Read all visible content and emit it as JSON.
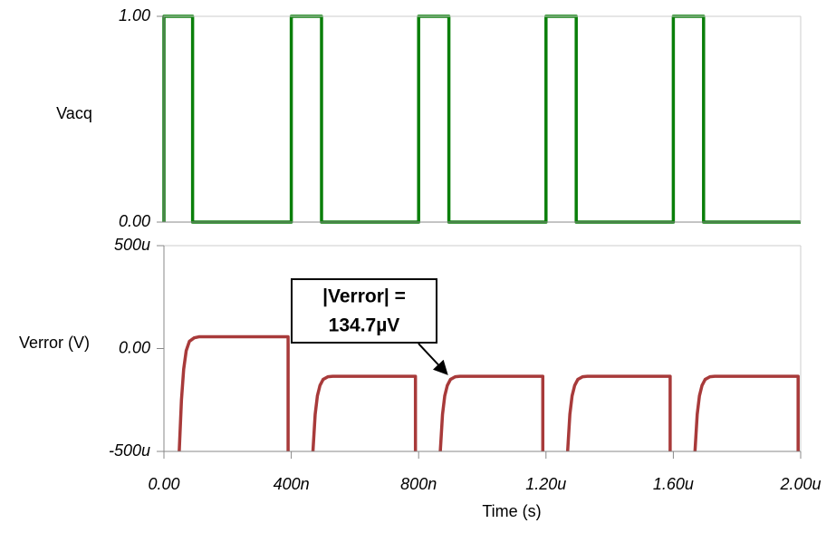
{
  "chart_data": [
    {
      "type": "line",
      "ylabel": "Vacq",
      "x": [
        0,
        0,
        90,
        90,
        400,
        400,
        495,
        495,
        800,
        800,
        895,
        895,
        1200,
        1200,
        1295,
        1295,
        1600,
        1600,
        1695,
        1695,
        2000
      ],
      "series": [
        {
          "name": "Vacq",
          "color": "#0a7f0a",
          "values": [
            0,
            1,
            1,
            0,
            0,
            1,
            1,
            0,
            0,
            1,
            1,
            0,
            0,
            1,
            1,
            0,
            0,
            1,
            1,
            0,
            0
          ]
        }
      ],
      "xlim": [
        0,
        2000
      ],
      "ylim": [
        0,
        1
      ],
      "yticks": [
        {
          "value": 0,
          "label": "0.00"
        },
        {
          "value": 1,
          "label": "1.00"
        }
      ]
    },
    {
      "type": "line",
      "ylabel": "Verror (V)",
      "xlabel": "Time (s)",
      "x": [
        48,
        55,
        62,
        70,
        80,
        95,
        110,
        390,
        390,
        null,
        468,
        475,
        482,
        490,
        500,
        515,
        530,
        790,
        790,
        null,
        868,
        875,
        882,
        890,
        900,
        915,
        930,
        1190,
        1190,
        null,
        1268,
        1275,
        1282,
        1290,
        1300,
        1315,
        1330,
        1590,
        1590,
        null,
        1668,
        1675,
        1682,
        1690,
        1700,
        1715,
        1730,
        1992,
        1992
      ],
      "series": [
        {
          "name": "Verror",
          "color": "#a83a3a",
          "values": [
            -500,
            -250,
            -100,
            -10,
            35,
            52,
            57,
            57,
            -500,
            null,
            -500,
            -320,
            -230,
            -180,
            -150,
            -137,
            -135,
            -135,
            -500,
            null,
            -500,
            -320,
            -230,
            -180,
            -150,
            -137,
            -135,
            -135,
            -500,
            null,
            -500,
            -320,
            -230,
            -180,
            -150,
            -137,
            -135,
            -135,
            -500,
            null,
            -500,
            -320,
            -230,
            -180,
            -150,
            -137,
            -135,
            -135,
            -500
          ]
        }
      ],
      "xlim": [
        0,
        2000
      ],
      "ylim": [
        -500,
        500
      ],
      "xticks": [
        {
          "value": 0,
          "label": "0.00"
        },
        {
          "value": 400,
          "label": "400n"
        },
        {
          "value": 800,
          "label": "800n"
        },
        {
          "value": 1200,
          "label": "1.20u"
        },
        {
          "value": 1600,
          "label": "1.60u"
        },
        {
          "value": 2000,
          "label": "2.00u"
        }
      ],
      "yticks": [
        {
          "value": -500,
          "label": "-500u"
        },
        {
          "value": 0,
          "label": "0.00"
        },
        {
          "value": 500,
          "label": "500u"
        }
      ],
      "annotation": [
        "|Verror| =",
        "134.7µV"
      ]
    }
  ]
}
